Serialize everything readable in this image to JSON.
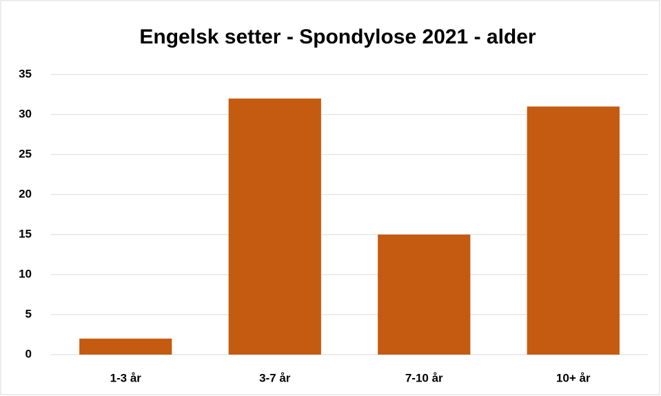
{
  "chart_data": {
    "type": "bar",
    "title": "Engelsk setter - Spondylose 2021 - alder",
    "categories": [
      "1-3 år",
      "3-7 år",
      "7-10 år",
      "10+ år"
    ],
    "values": [
      2,
      32,
      15,
      31
    ],
    "color": "#c55a11",
    "ylim": [
      0,
      35
    ],
    "yticks": [
      0,
      5,
      10,
      15,
      20,
      25,
      30,
      35
    ],
    "grid": true
  }
}
